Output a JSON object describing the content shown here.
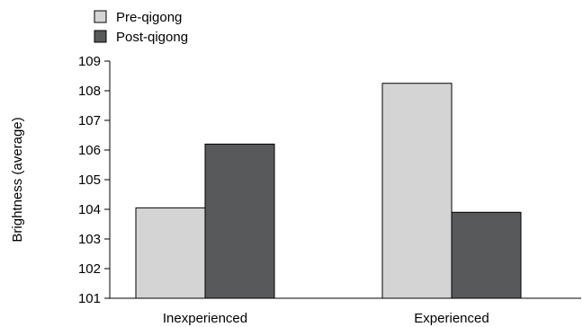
{
  "chart_data": {
    "type": "bar",
    "categories": [
      "Inexperienced",
      "Experienced"
    ],
    "series": [
      {
        "name": "Pre-qigong",
        "values": [
          104.05,
          108.25
        ],
        "color": "#d4d4d4"
      },
      {
        "name": "Post-qigong",
        "values": [
          106.2,
          103.9
        ],
        "color": "#58595b"
      }
    ],
    "title": "",
    "xlabel": "",
    "ylabel": "Brightness (average)",
    "ylim": [
      101,
      109
    ],
    "yticks": [
      101,
      102,
      103,
      104,
      105,
      106,
      107,
      108,
      109
    ],
    "grid": false,
    "legend_position": "top-left"
  }
}
